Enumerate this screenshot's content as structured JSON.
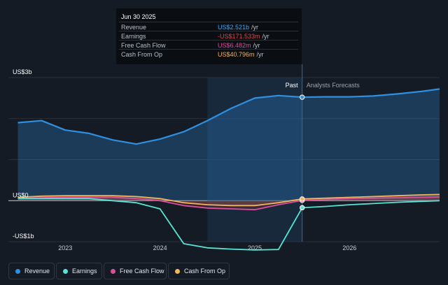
{
  "tooltip": {
    "date": "Jun 30 2025",
    "rows": [
      {
        "label": "Revenue",
        "value": "US$2.521b",
        "unit": "/yr",
        "color": "#4aa6ec"
      },
      {
        "label": "Earnings",
        "value": "-US$171.533m",
        "unit": "/yr",
        "color": "#e0474f"
      },
      {
        "label": "Free Cash Flow",
        "value": "US$6.482m",
        "unit": "/yr",
        "color": "#d9509a"
      },
      {
        "label": "Cash From Op",
        "value": "US$40.796m",
        "unit": "/yr",
        "color": "#f2b45c"
      }
    ]
  },
  "chart_labels": {
    "past": "Past",
    "forecast": "Analysts Forecasts"
  },
  "legend": [
    {
      "label": "Revenue",
      "color": "#2f8fe0"
    },
    {
      "label": "Earnings",
      "color": "#57e3d6"
    },
    {
      "label": "Free Cash Flow",
      "color": "#d9509a"
    },
    {
      "label": "Cash From Op",
      "color": "#f2b45c"
    }
  ],
  "chart_data": {
    "type": "area",
    "y_unit": "US$ billions",
    "ylim": [
      -1,
      3
    ],
    "y_ticks": [
      {
        "value": 3,
        "label": "US$3b"
      },
      {
        "value": 0,
        "label": "US$0"
      },
      {
        "value": -1,
        "label": "-US$1b"
      }
    ],
    "xlim": [
      2022.4,
      2026.95
    ],
    "x_ticks": [
      {
        "value": 2023,
        "label": "2023"
      },
      {
        "value": 2024,
        "label": "2024"
      },
      {
        "value": 2025,
        "label": "2025"
      },
      {
        "value": 2026,
        "label": "2026"
      }
    ],
    "past_end": 2025.5,
    "highlight_start": 2024.5,
    "grid": true,
    "series": [
      {
        "name": "Revenue",
        "color": "#2f8fe0",
        "x": [
          2022.5,
          2022.75,
          2023.0,
          2023.25,
          2023.5,
          2023.75,
          2024.0,
          2024.25,
          2024.5,
          2024.75,
          2025.0,
          2025.25,
          2025.5,
          2025.75,
          2026.0,
          2026.25,
          2026.5,
          2026.75,
          2026.95
        ],
        "y": [
          1.9,
          1.95,
          1.72,
          1.64,
          1.48,
          1.38,
          1.5,
          1.68,
          1.95,
          2.25,
          2.5,
          2.56,
          2.521,
          2.53,
          2.53,
          2.55,
          2.6,
          2.66,
          2.72
        ]
      },
      {
        "name": "Earnings",
        "color": "#57e3d6",
        "x": [
          2022.5,
          2022.75,
          2023.0,
          2023.25,
          2023.5,
          2023.75,
          2024.0,
          2024.25,
          2024.5,
          2024.75,
          2025.0,
          2025.25,
          2025.5,
          2025.75,
          2026.0,
          2026.25,
          2026.5,
          2026.75,
          2026.95
        ],
        "y": [
          0.05,
          0.05,
          0.05,
          0.05,
          0.0,
          -0.05,
          -0.2,
          -1.05,
          -1.15,
          -1.18,
          -1.2,
          -1.19,
          -0.172,
          -0.14,
          -0.1,
          -0.07,
          -0.04,
          -0.02,
          0.0
        ]
      },
      {
        "name": "Free Cash Flow",
        "color": "#d9509a",
        "x": [
          2022.5,
          2022.75,
          2023.0,
          2023.25,
          2023.5,
          2023.75,
          2024.0,
          2024.25,
          2024.5,
          2024.75,
          2025.0,
          2025.25,
          2025.5,
          2025.75,
          2026.0,
          2026.25,
          2026.5,
          2026.75,
          2026.95
        ],
        "y": [
          0.05,
          0.07,
          0.08,
          0.08,
          0.08,
          0.05,
          0.0,
          -0.12,
          -0.18,
          -0.2,
          -0.22,
          -0.1,
          0.006,
          0.03,
          0.05,
          0.06,
          0.07,
          0.08,
          0.09
        ]
      },
      {
        "name": "Cash From Op",
        "color": "#f2b45c",
        "x": [
          2022.5,
          2022.75,
          2023.0,
          2023.25,
          2023.5,
          2023.75,
          2024.0,
          2024.25,
          2024.5,
          2024.75,
          2025.0,
          2025.25,
          2025.5,
          2025.75,
          2026.0,
          2026.25,
          2026.5,
          2026.75,
          2026.95
        ],
        "y": [
          0.08,
          0.11,
          0.12,
          0.12,
          0.12,
          0.1,
          0.05,
          -0.05,
          -0.1,
          -0.12,
          -0.12,
          -0.05,
          0.041,
          0.06,
          0.08,
          0.1,
          0.12,
          0.14,
          0.15
        ]
      }
    ]
  }
}
